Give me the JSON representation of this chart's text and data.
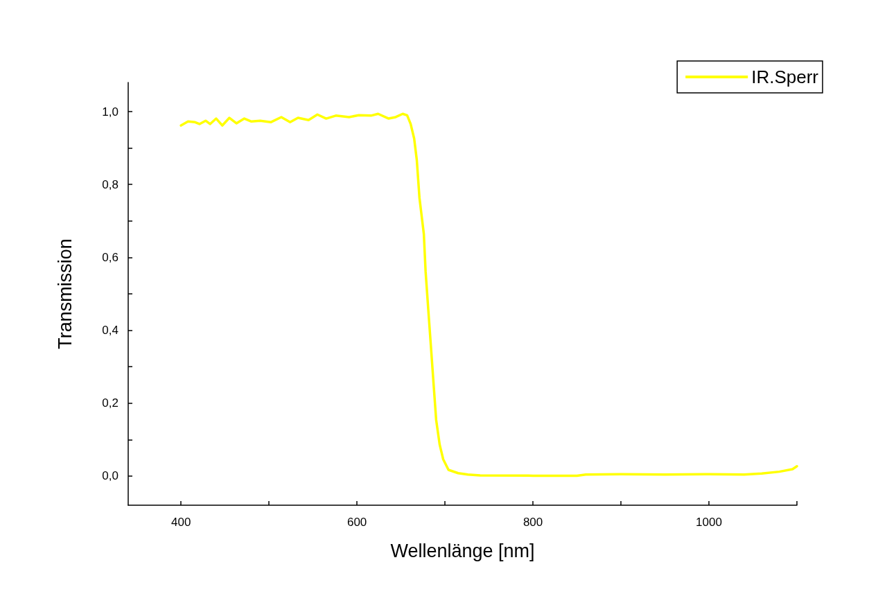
{
  "chart_data": {
    "type": "line",
    "xlabel": "Wellenlänge [nm]",
    "ylabel": "Transmission",
    "xlim": [
      340,
      1100
    ],
    "ylim": [
      -0.08,
      1.08
    ],
    "xticks": [
      400,
      {
        "value": 500,
        "label": null
      },
      600,
      {
        "value": 700,
        "label": null
      },
      800,
      {
        "value": 900,
        "label": null
      },
      1000,
      {
        "value": 1100,
        "label": null
      }
    ],
    "yticks": [
      {
        "value": 0,
        "label": "0,0"
      },
      {
        "value": 0.1,
        "label": null
      },
      {
        "value": 0.2,
        "label": "0,2"
      },
      {
        "value": 0.3,
        "label": null
      },
      {
        "value": 0.4,
        "label": "0,4"
      },
      {
        "value": 0.5,
        "label": null
      },
      {
        "value": 0.6,
        "label": "0,6"
      },
      {
        "value": 0.7,
        "label": null
      },
      {
        "value": 0.8,
        "label": "0,8"
      },
      {
        "value": 0.9,
        "label": null
      },
      {
        "value": 1.0,
        "label": "1,0"
      }
    ],
    "grid": false,
    "legend": "top right",
    "marker": "none",
    "line_style": "solid",
    "series": [
      {
        "name": "IR.Sperr",
        "color": "#ffff00",
        "x": [
          400,
          408,
          416,
          421,
          428,
          433,
          440,
          447,
          455,
          463,
          472,
          480,
          490,
          502,
          514,
          524,
          533,
          545,
          555,
          565,
          576,
          591,
          602,
          616,
          624,
          636,
          644,
          652,
          657,
          661,
          665,
          668,
          671,
          676,
          678,
          681,
          684,
          687,
          690,
          694,
          698,
          704,
          715,
          726,
          740,
          800,
          850,
          860,
          900,
          950,
          1000,
          1040,
          1060,
          1080,
          1095,
          1100
        ],
        "values": [
          0.962,
          0.973,
          0.971,
          0.966,
          0.975,
          0.966,
          0.981,
          0.962,
          0.983,
          0.968,
          0.981,
          0.973,
          0.975,
          0.971,
          0.985,
          0.971,
          0.983,
          0.977,
          0.992,
          0.981,
          0.989,
          0.985,
          0.99,
          0.989,
          0.994,
          0.981,
          0.985,
          0.994,
          0.99,
          0.966,
          0.926,
          0.867,
          0.764,
          0.664,
          0.561,
          0.458,
          0.357,
          0.255,
          0.154,
          0.086,
          0.046,
          0.017,
          0.008,
          0.004,
          0.002,
          0.001,
          0.001,
          0.004,
          0.005,
          0.004,
          0.005,
          0.004,
          0.007,
          0.012,
          0.019,
          0.027
        ]
      }
    ]
  }
}
